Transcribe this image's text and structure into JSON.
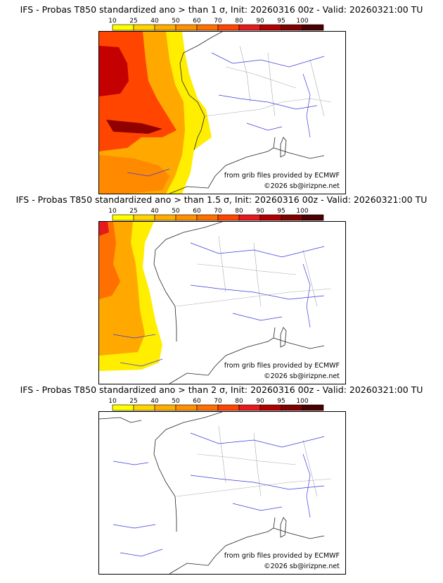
{
  "panels": [
    {
      "title": "IFS - Probas T850  standardized ano > than 1 σ, Init: 20260316 00z - Valid: 20260321:00 TU",
      "credit_source": "from grib files provided by ECMWF",
      "credit_copyright": "©2026 sb@irizpne.net"
    },
    {
      "title": "IFS - Probas T850  standardized ano > than 1.5 σ, Init: 20260316 00z - Valid: 20260321:00 TU",
      "credit_source": "from grib files provided by ECMWF",
      "credit_copyright": "©2026 sb@irizpne.net"
    },
    {
      "title": "IFS - Probas T850  standardized ano > than 2 σ, Init: 20260316 00z - Valid: 20260321:00 TU",
      "credit_source": "from grib files provided by ECMWF",
      "credit_copyright": "©2026 sb@irizpne.net"
    }
  ],
  "colorbar": {
    "ticks": [
      "10",
      "25",
      "40",
      "50",
      "60",
      "70",
      "80",
      "90",
      "95",
      "100"
    ],
    "colors": [
      "#ffff00",
      "#ffd400",
      "#ffad00",
      "#ff9000",
      "#ff7000",
      "#ff4500",
      "#e41a1c",
      "#b00000",
      "#800000",
      "#4a0000"
    ]
  }
}
